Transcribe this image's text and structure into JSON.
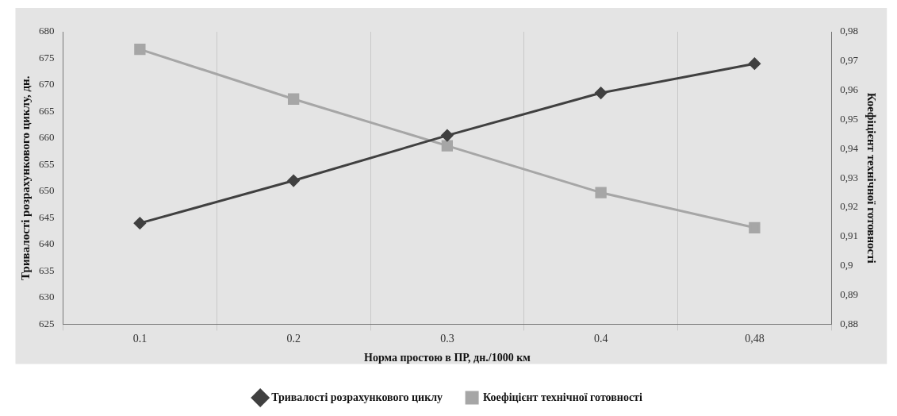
{
  "chart_data": {
    "type": "line",
    "xlabel": "Норма простою в ПР, дн./1000 км",
    "ylabel": "Тривалості розрахункового циклу, дн.",
    "y2label": "Коефіцієнт технічної готовності",
    "categories": [
      "0.1",
      "0.2",
      "0.3",
      "0.4",
      "0,48"
    ],
    "series": [
      {
        "name": "Тривалості розрахункового циклу",
        "color": "#404040",
        "marker": "diamond",
        "values": [
          644,
          652,
          660.5,
          668.5,
          674
        ]
      },
      {
        "name": "Коефіцієнт технічної готовності",
        "color": "#a6a6a6",
        "marker": "square",
        "axis": "y2",
        "values": [
          0.974,
          0.957,
          0.941,
          0.925,
          0.913
        ]
      }
    ],
    "ylim": [
      625,
      680
    ],
    "yticks": [
      625,
      630,
      635,
      640,
      645,
      650,
      655,
      660,
      665,
      670,
      675,
      680
    ],
    "y2lim": [
      0.88,
      0.98
    ],
    "y2ticks": [
      {
        "value": 0.88,
        "label": "0,88"
      },
      {
        "value": 0.89,
        "label": "0,89"
      },
      {
        "value": 0.9,
        "label": "0,9"
      },
      {
        "value": 0.91,
        "label": "0,91"
      },
      {
        "value": 0.92,
        "label": "0,92"
      },
      {
        "value": 0.93,
        "label": "0,93"
      },
      {
        "value": 0.94,
        "label": "0,94"
      },
      {
        "value": 0.95,
        "label": "0,95"
      },
      {
        "value": 0.96,
        "label": "0,96"
      },
      {
        "value": 0.97,
        "label": "0,97"
      },
      {
        "value": 0.98,
        "label": "0,98"
      }
    ],
    "grid": "x",
    "legend": "bottom"
  }
}
